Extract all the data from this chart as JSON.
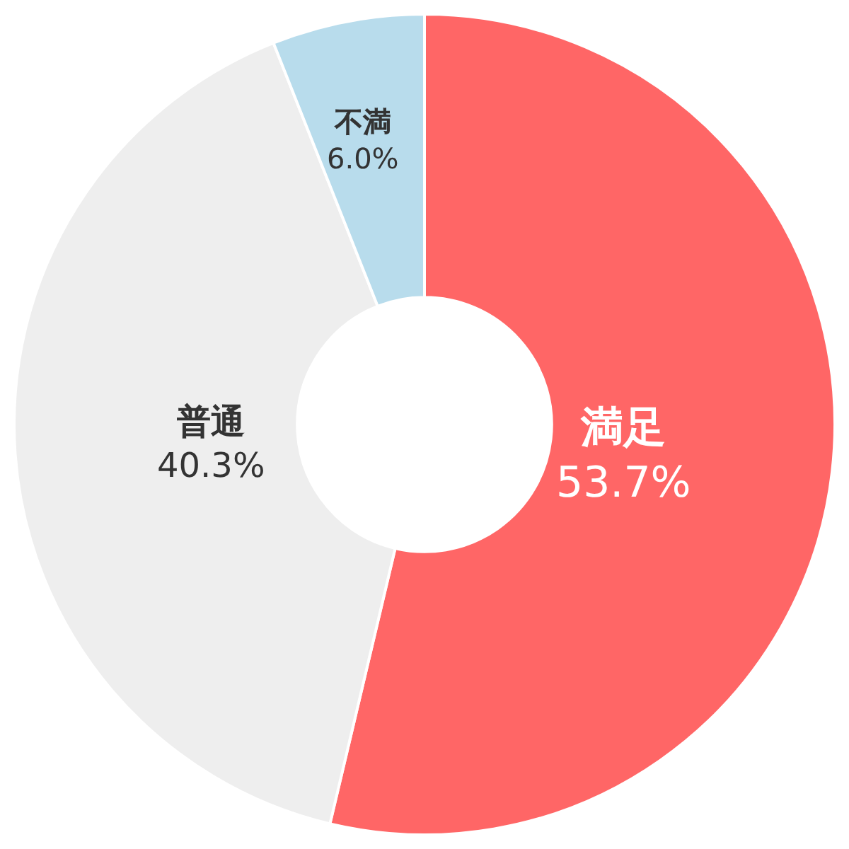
{
  "chart_data": {
    "type": "donut",
    "categories": [
      "満足",
      "普通",
      "不満"
    ],
    "values": [
      53.7,
      40.3,
      6.0
    ],
    "value_labels": [
      "53.7%",
      "40.3%",
      "6.0%"
    ],
    "colors": [
      "#ff6666",
      "#eeeeee",
      "#b8dcec"
    ]
  }
}
